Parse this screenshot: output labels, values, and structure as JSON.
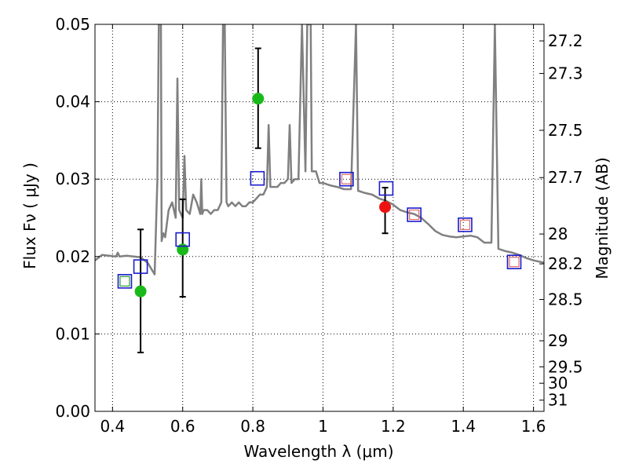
{
  "chart_data": {
    "type": "scatter",
    "title": "",
    "xlabel": "Wavelength  λ (μm)",
    "ylabel": "Flux  Fν  ( μJy )",
    "y2label": "Magnitude (AB)",
    "xlim": [
      0.35,
      1.63
    ],
    "ylim": [
      0.0,
      0.05
    ],
    "grid": true,
    "x_ticks": [
      0.4,
      0.6,
      0.8,
      1.0,
      1.2,
      1.4,
      1.6
    ],
    "x_tick_labels": [
      "0.4",
      "0.6",
      "0.8",
      "1",
      "1.2",
      "1.4",
      "1.6"
    ],
    "y_ticks": [
      0.0,
      0.01,
      0.02,
      0.03,
      0.04,
      0.05
    ],
    "y_tick_labels": [
      "0.00",
      "0.01",
      "0.02",
      "0.03",
      "0.04",
      "0.05"
    ],
    "magnitude_ticks": [
      {
        "mag": 27.2,
        "label": "27.2"
      },
      {
        "mag": 27.3,
        "label": "27.3"
      },
      {
        "mag": 27.5,
        "label": "27.5"
      },
      {
        "mag": 27.7,
        "label": "27.7"
      },
      {
        "mag": 28.0,
        "label": "28"
      },
      {
        "mag": 28.2,
        "label": "28.2"
      },
      {
        "mag": 28.5,
        "label": "28.5"
      },
      {
        "mag": 29.0,
        "label": "29"
      },
      {
        "mag": 29.5,
        "label": "29.5"
      },
      {
        "mag": 30.0,
        "label": "30"
      },
      {
        "mag": 31.0,
        "label": "31"
      }
    ],
    "series": [
      {
        "kind": "line",
        "color": "#808080",
        "x": [
          0.35,
          0.37,
          0.39,
          0.41,
          0.415,
          0.42,
          0.44,
          0.46,
          0.48,
          0.5,
          0.52,
          0.528,
          0.532,
          0.538,
          0.54,
          0.545,
          0.55,
          0.56,
          0.57,
          0.58,
          0.585,
          0.59,
          0.6,
          0.605,
          0.61,
          0.62,
          0.63,
          0.64,
          0.65,
          0.653,
          0.656,
          0.66,
          0.67,
          0.68,
          0.69,
          0.7,
          0.71,
          0.715,
          0.72,
          0.725,
          0.73,
          0.74,
          0.75,
          0.76,
          0.77,
          0.78,
          0.79,
          0.8,
          0.81,
          0.82,
          0.83,
          0.84,
          0.845,
          0.85,
          0.86,
          0.87,
          0.88,
          0.89,
          0.9,
          0.905,
          0.91,
          0.92,
          0.93,
          0.94,
          0.95,
          0.955,
          0.958,
          0.965,
          0.968,
          0.98,
          0.99,
          1.0,
          1.02,
          1.04,
          1.06,
          1.08,
          1.094,
          1.1,
          1.12,
          1.14,
          1.16,
          1.18,
          1.2,
          1.22,
          1.24,
          1.26,
          1.28,
          1.3,
          1.32,
          1.34,
          1.36,
          1.38,
          1.4,
          1.42,
          1.44,
          1.46,
          1.48,
          1.49,
          1.5,
          1.52,
          1.54,
          1.56,
          1.58,
          1.6,
          1.63
        ],
        "y": [
          0.0195,
          0.0202,
          0.0201,
          0.02,
          0.0205,
          0.02,
          0.0201,
          0.02,
          0.0199,
          0.0192,
          0.0177,
          0.03,
          0.05,
          0.05,
          0.022,
          0.023,
          0.0225,
          0.026,
          0.027,
          0.025,
          0.043,
          0.026,
          0.025,
          0.033,
          0.026,
          0.0255,
          0.028,
          0.027,
          0.0255,
          0.03,
          0.0255,
          0.026,
          0.026,
          0.0255,
          0.026,
          0.026,
          0.027,
          0.05,
          0.05,
          0.027,
          0.0265,
          0.027,
          0.0265,
          0.027,
          0.0265,
          0.0265,
          0.027,
          0.027,
          0.0275,
          0.028,
          0.028,
          0.029,
          0.037,
          0.029,
          0.029,
          0.029,
          0.0295,
          0.0295,
          0.03,
          0.037,
          0.0295,
          0.03,
          0.03,
          0.05,
          0.031,
          0.05,
          0.05,
          0.05,
          0.031,
          0.031,
          0.0295,
          0.0295,
          0.0292,
          0.029,
          0.0287,
          0.0287,
          0.05,
          0.0285,
          0.0282,
          0.028,
          0.0275,
          0.0272,
          0.0267,
          0.026,
          0.0257,
          0.0255,
          0.025,
          0.0242,
          0.0233,
          0.0228,
          0.0226,
          0.0225,
          0.0226,
          0.0227,
          0.0225,
          0.0218,
          0.0218,
          0.05,
          0.021,
          0.0207,
          0.0205,
          0.0202,
          0.0198,
          0.0195,
          0.0192
        ]
      },
      {
        "kind": "points",
        "marker": "circle",
        "color": "#1ab91a",
        "x": [
          0.48,
          0.6,
          0.815
        ],
        "y": [
          0.0155,
          0.0209,
          0.0404
        ],
        "yerr_low": [
          0.0079,
          0.0061,
          0.0064
        ],
        "yerr_high": [
          0.008,
          0.0065,
          0.0065
        ]
      },
      {
        "kind": "points",
        "marker": "circle",
        "color": "#ee1111",
        "x": [
          1.177
        ],
        "y": [
          0.0264
        ],
        "yerr_low": [
          0.0034
        ],
        "yerr_high": [
          0.0025
        ]
      },
      {
        "kind": "points",
        "marker": "square",
        "color": "#1b1bcc",
        "x": [
          0.435,
          0.48,
          0.6,
          0.813,
          1.067,
          1.18,
          1.26,
          1.405,
          1.545
        ],
        "y": [
          0.0168,
          0.0187,
          0.0222,
          0.0301,
          0.03,
          0.0288,
          0.0254,
          0.0241,
          0.0193
        ]
      },
      {
        "kind": "points",
        "marker": "square-small",
        "color": "#2aa02a",
        "x": [
          0.435
        ],
        "y": [
          0.0168
        ]
      },
      {
        "kind": "points",
        "marker": "square-small",
        "color": "#e06a6a",
        "x": [
          1.067,
          1.26,
          1.405,
          1.545
        ],
        "y": [
          0.03,
          0.0254,
          0.0241,
          0.0193
        ]
      }
    ]
  }
}
